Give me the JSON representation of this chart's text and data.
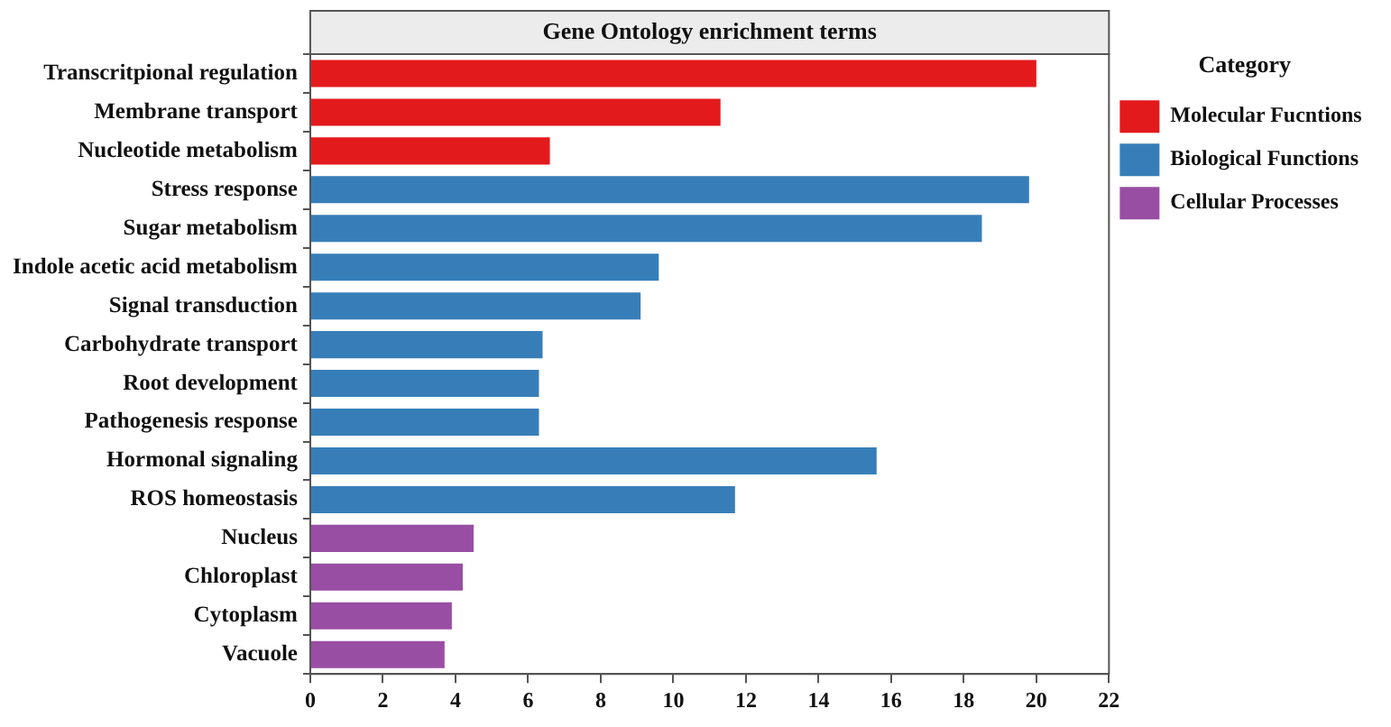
{
  "chart_data": {
    "type": "bar",
    "orientation": "horizontal",
    "title": "Gene Ontology enrichment terms",
    "legend_title": "Category",
    "legend": "right",
    "grid": false,
    "categories": [
      "Transcritpional regulation",
      "Membrane transport",
      "Nucleotide metabolism",
      "Stress response",
      "Sugar metabolism",
      "Indole acetic acid metabolism",
      "Signal transduction",
      "Carbohydrate transport",
      "Root development",
      "Pathogenesis response",
      "Hormonal signaling",
      "ROS homeostasis",
      "Nucleus",
      "Chloroplast",
      "Cytoplasm",
      "Vacuole"
    ],
    "series": [
      {
        "name": "Molecular Fucntions",
        "color": "#e31a1c",
        "values": [
          20.0,
          11.3,
          6.6,
          null,
          null,
          null,
          null,
          null,
          null,
          null,
          null,
          null,
          null,
          null,
          null,
          null
        ]
      },
      {
        "name": "Biological Functions",
        "color": "#377eb8",
        "values": [
          null,
          null,
          null,
          19.8,
          18.5,
          9.6,
          9.1,
          6.4,
          6.3,
          6.3,
          15.6,
          11.7,
          null,
          null,
          null,
          null
        ]
      },
      {
        "name": "Cellular Processes",
        "color": "#984ea3",
        "values": [
          null,
          null,
          null,
          null,
          null,
          null,
          null,
          null,
          null,
          null,
          null,
          null,
          4.5,
          4.2,
          3.9,
          3.7
        ]
      }
    ],
    "xlim": [
      0,
      22
    ],
    "xticks": [
      0,
      2,
      4,
      6,
      8,
      10,
      12,
      14,
      16,
      18,
      20,
      22
    ]
  }
}
